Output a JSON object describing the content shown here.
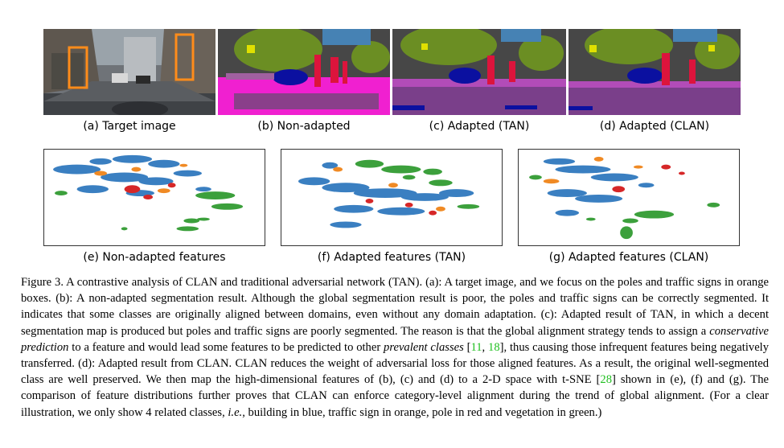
{
  "figure": {
    "top_row": [
      {
        "label": "(a) Target image",
        "name": "target-image"
      },
      {
        "label": "(b) Non-adapted",
        "name": "non-adapted"
      },
      {
        "label": "(c) Adapted (TAN)",
        "name": "adapted-tan"
      },
      {
        "label": "(d) Adapted (CLAN)",
        "name": "adapted-clan"
      }
    ],
    "bottom_row": [
      {
        "label": "(e) Non-adapted features",
        "name": "non-adapted-features"
      },
      {
        "label": "(f) Adapted features (TAN)",
        "name": "adapted-features-tan"
      },
      {
        "label": "(g) Adapted features (CLAN)",
        "name": "adapted-features-clan"
      }
    ],
    "colors": {
      "building": "#3a7fc1",
      "traffic_sign": "#f08a24",
      "pole": "#d62728",
      "vegetation": "#3ca03c",
      "orange_box": "#ff8c1a",
      "road": "#7a3f8a",
      "sidewalk": "#f020d0",
      "car": "#0b10a0",
      "seg_vegetation": "#6b8e23",
      "seg_building": "#474747",
      "seg_sky": "#4682b4"
    }
  },
  "caption": {
    "p1": "Figure 3. A contrastive analysis of CLAN and traditional adversarial network (TAN). (a): A target image, and we focus on the poles and traffic signs in orange boxes. (b): A non-adapted segmentation result. Although the global segmentation result is poor, the poles and traffic signs can be correctly segmented. It indicates that some classes are originally aligned between domains, even without any domain adaptation. (c): Adapted result of TAN, in which a decent segmentation map is produced but poles and traffic signs are poorly segmented. The reason is that the global alignment strategy tends to assign a ",
    "em1": "conservative prediction",
    "p2": " to a feature and would lead some features to be predicted to other ",
    "em2": "prevalent classes",
    "p3": " [",
    "ref1": "11",
    "p4": ", ",
    "ref2": "18",
    "p5": "], thus causing those infrequent features being negatively transferred. (d): Adapted result from CLAN. CLAN reduces the weight of adversarial loss for those aligned features. As a result, the original well-segmented class are well preserved. We then map the high-dimensional features of (b), (c) and (d) to a 2-D space with t-SNE [",
    "ref3": "28",
    "p6": "] shown in (e), (f) and (g). The comparison of feature distributions further proves that CLAN can enforce category-level alignment during the trend of global alignment. (For a clear illustration, we only show 4 related classes, ",
    "em3": "i.e.",
    "p7": ", building in blue, traffic sign in orange, pole in red and vegetation in green.)"
  }
}
